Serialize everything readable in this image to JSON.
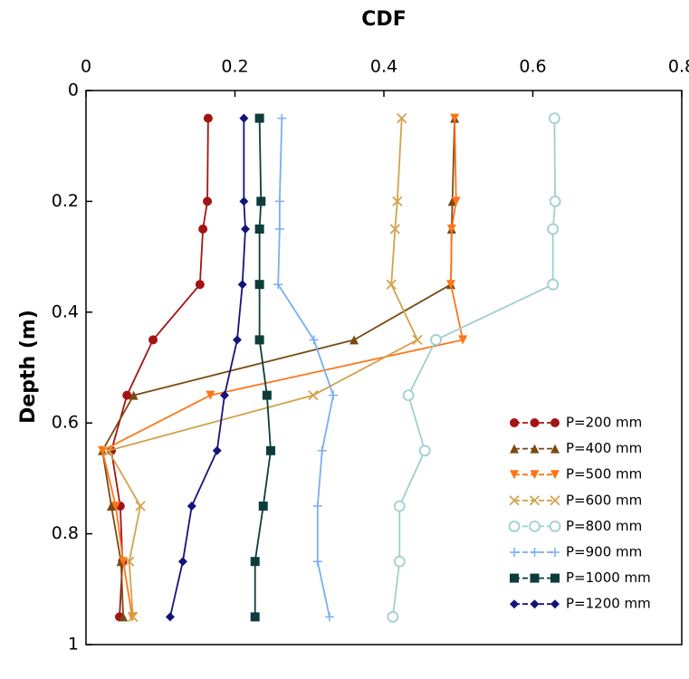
{
  "chart_data": {
    "type": "line",
    "title": "CDF",
    "y_label": "Depth (m)",
    "y": [
      0.05,
      0.2,
      0.25,
      0.35,
      0.45,
      0.55,
      0.65,
      0.75,
      0.85,
      0.95
    ],
    "xlim": [
      0,
      0.8
    ],
    "xticks": [
      0,
      0.2,
      0.4,
      0.6,
      0.8
    ],
    "ylim": [
      0,
      1
    ],
    "yticks": [
      0,
      0.2,
      0.4,
      0.6,
      0.8,
      1
    ],
    "y_inverted": true,
    "x_axis_position": "top",
    "legend": "lower right",
    "series": [
      {
        "name": "P=200 mm",
        "color": "#a31515",
        "marker": "circle",
        "values": [
          0.164,
          0.163,
          0.157,
          0.153,
          0.09,
          0.055,
          0.034,
          0.046,
          0.049,
          0.045
        ]
      },
      {
        "name": "P=400 mm",
        "color": "#7b4a12",
        "marker": "triangle-up",
        "values": [
          0.495,
          0.492,
          0.491,
          0.49,
          0.36,
          0.064,
          0.022,
          0.034,
          0.047,
          0.05
        ]
      },
      {
        "name": "P=500 mm",
        "color": "#ff7518",
        "marker": "triangle-down",
        "values": [
          0.495,
          0.497,
          0.491,
          0.49,
          0.506,
          0.167,
          0.022,
          0.04,
          0.05,
          0.062
        ]
      },
      {
        "name": "P=600 mm",
        "color": "#d4a24c",
        "marker": "x",
        "values": [
          0.424,
          0.418,
          0.415,
          0.41,
          0.445,
          0.305,
          0.03,
          0.073,
          0.058,
          0.063
        ]
      },
      {
        "name": "P=800 mm",
        "color": "#9fd0cf",
        "marker": "open-circle",
        "values": [
          0.629,
          0.63,
          0.627,
          0.627,
          0.47,
          0.433,
          0.455,
          0.421,
          0.421,
          0.412
        ]
      },
      {
        "name": "P=900 mm",
        "color": "#7aaef0",
        "marker": "plus",
        "values": [
          0.263,
          0.26,
          0.26,
          0.258,
          0.306,
          0.332,
          0.317,
          0.311,
          0.311,
          0.327
        ]
      },
      {
        "name": "P=1000 mm",
        "color": "#0d3d3a",
        "marker": "square",
        "values": [
          0.233,
          0.235,
          0.233,
          0.233,
          0.233,
          0.243,
          0.248,
          0.238,
          0.227,
          0.227
        ]
      },
      {
        "name": "P=1200 mm",
        "color": "#14137a",
        "marker": "diamond",
        "values": [
          0.212,
          0.212,
          0.214,
          0.21,
          0.203,
          0.186,
          0.176,
          0.142,
          0.13,
          0.113
        ]
      }
    ]
  }
}
